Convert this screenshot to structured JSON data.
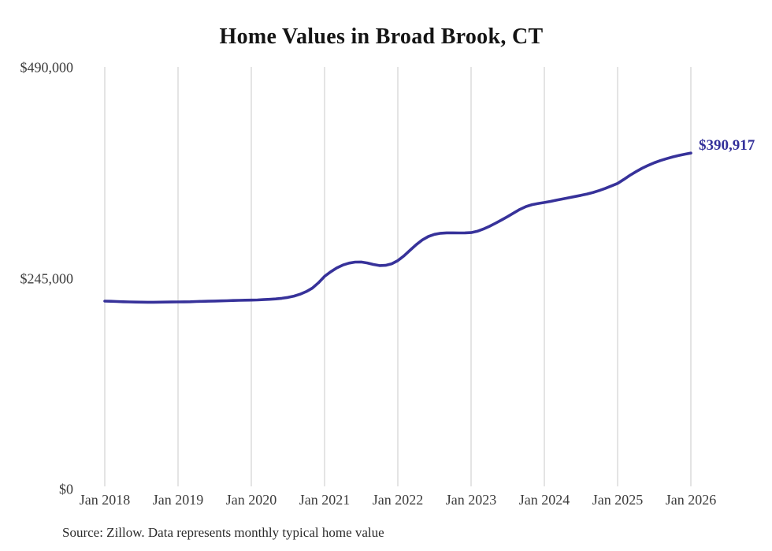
{
  "title": "Home Values in Broad Brook, CT",
  "end_label": "$390,917",
  "source_note": "Source: Zillow. Data represents monthly typical home value",
  "colors": {
    "line": "#37329a",
    "end_label": "#34319b",
    "grid": "#c9c9c9",
    "title_text": "#141414",
    "axis_text": "#3c3c3c",
    "background": "#ffffff"
  },
  "chart_data": {
    "type": "line",
    "title": "Home Values in Broad Brook, CT",
    "xlabel": "",
    "ylabel": "",
    "x_interval": "monthly",
    "x_start": "Jan 2018",
    "x_end": "Jan 2026",
    "ylim": [
      0,
      490000
    ],
    "grid": "vertical-yearly",
    "legend": "none",
    "x_ticks": [
      "Jan 2018",
      "Jan 2019",
      "Jan 2020",
      "Jan 2021",
      "Jan 2022",
      "Jan 2023",
      "Jan 2024",
      "Jan 2025",
      "Jan 2026"
    ],
    "y_ticks": [
      {
        "label": "$0",
        "value": 0
      },
      {
        "label": "$245,000",
        "value": 245000
      },
      {
        "label": "$490,000",
        "value": 490000
      }
    ],
    "final_value": 390917,
    "final_value_label": "$390,917",
    "values": [
      218900,
      218700,
      218400,
      218200,
      218000,
      217800,
      217700,
      217600,
      217600,
      217700,
      217800,
      217900,
      218000,
      218100,
      218200,
      218400,
      218600,
      218800,
      219000,
      219200,
      219400,
      219600,
      219800,
      220000,
      220100,
      220300,
      220600,
      221000,
      221500,
      222200,
      223200,
      224800,
      227000,
      230000,
      234000,
      240200,
      247700,
      253000,
      257500,
      260800,
      263000,
      264200,
      264300,
      263200,
      261500,
      260200,
      260500,
      262300,
      266000,
      271500,
      278000,
      284500,
      290000,
      294000,
      296500,
      297800,
      298200,
      298200,
      298100,
      298200,
      298500,
      300000,
      302600,
      305800,
      309400,
      313200,
      317200,
      321400,
      325500,
      328800,
      331000,
      332400,
      333500,
      334800,
      336200,
      337600,
      339000,
      340400,
      341800,
      343400,
      345200,
      347400,
      350000,
      352800,
      355600,
      360200,
      365000,
      369300,
      373200,
      376600,
      379600,
      382200,
      384400,
      386400,
      388100,
      389600,
      390917
    ]
  }
}
